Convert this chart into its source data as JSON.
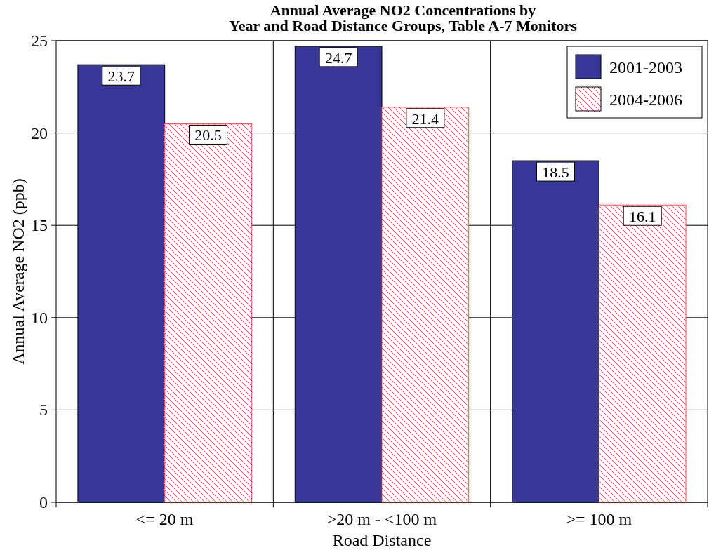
{
  "chart_data": {
    "type": "bar",
    "title": "Annual Average NO2 Concentrations by\nYear and Road Distance Groups, Table A-7 Monitors",
    "xlabel": "Road Distance",
    "ylabel": "Annual Average NO2 (ppb)",
    "categories": [
      "<= 20 m",
      ">20 m - <100 m",
      ">= 100 m"
    ],
    "series": [
      {
        "name": "2001-2003",
        "color": "#373797",
        "values": [
          23.7,
          24.7,
          18.5
        ]
      },
      {
        "name": "2004-2006",
        "color": "#ff5050",
        "values": [
          20.5,
          21.4,
          16.1
        ]
      }
    ],
    "ylim": [
      0,
      25
    ],
    "yticks": [
      0,
      5,
      10,
      15,
      20,
      25
    ],
    "grid": true,
    "legend": "top right",
    "data_labels": true
  }
}
